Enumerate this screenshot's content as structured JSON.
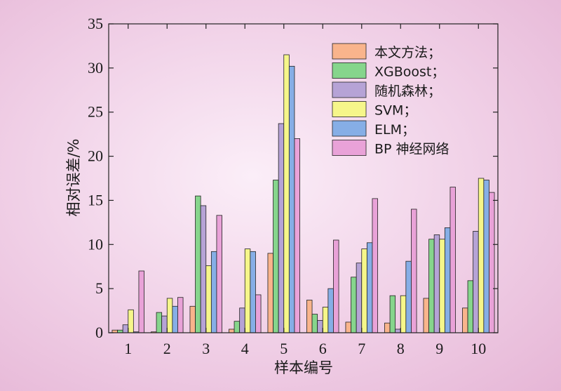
{
  "chart_data": {
    "type": "bar",
    "xlabel": "样本编号",
    "ylabel": "相对误差/%",
    "ylim": [
      0,
      35
    ],
    "yticks": [
      0,
      5,
      10,
      15,
      20,
      25,
      30,
      35
    ],
    "categories": [
      "1",
      "2",
      "3",
      "4",
      "5",
      "6",
      "7",
      "8",
      "9",
      "10"
    ],
    "legend_position": "top-right",
    "grid": false,
    "series": [
      {
        "name": "本文方法；",
        "color": "#f9b48c",
        "values": [
          0.3,
          0.1,
          3.0,
          0.4,
          9.0,
          3.7,
          1.2,
          1.1,
          3.9,
          2.8
        ]
      },
      {
        "name": "XGBoost；",
        "color": "#86d58c",
        "values": [
          0.3,
          2.3,
          15.5,
          1.3,
          17.3,
          2.1,
          6.3,
          4.2,
          10.6,
          5.9
        ]
      },
      {
        "name": "随机森林；",
        "color": "#b6a3d6",
        "values": [
          0.9,
          1.9,
          14.4,
          2.8,
          23.7,
          1.4,
          7.9,
          0.4,
          11.1,
          11.5
        ]
      },
      {
        "name": "SVM；",
        "color": "#f6f68a",
        "values": [
          2.6,
          3.9,
          7.6,
          9.5,
          31.5,
          2.9,
          9.5,
          4.2,
          10.6,
          17.5
        ]
      },
      {
        "name": "ELM；",
        "color": "#86aee6",
        "values": [
          0.1,
          3.0,
          9.2,
          9.2,
          30.2,
          5.0,
          10.2,
          8.1,
          11.9,
          17.3
        ]
      },
      {
        "name": "BP 神经网络",
        "color": "#e9a2d8",
        "values": [
          7.0,
          4.0,
          13.3,
          4.3,
          22.0,
          10.5,
          15.2,
          14.0,
          16.5,
          15.9
        ]
      }
    ]
  }
}
